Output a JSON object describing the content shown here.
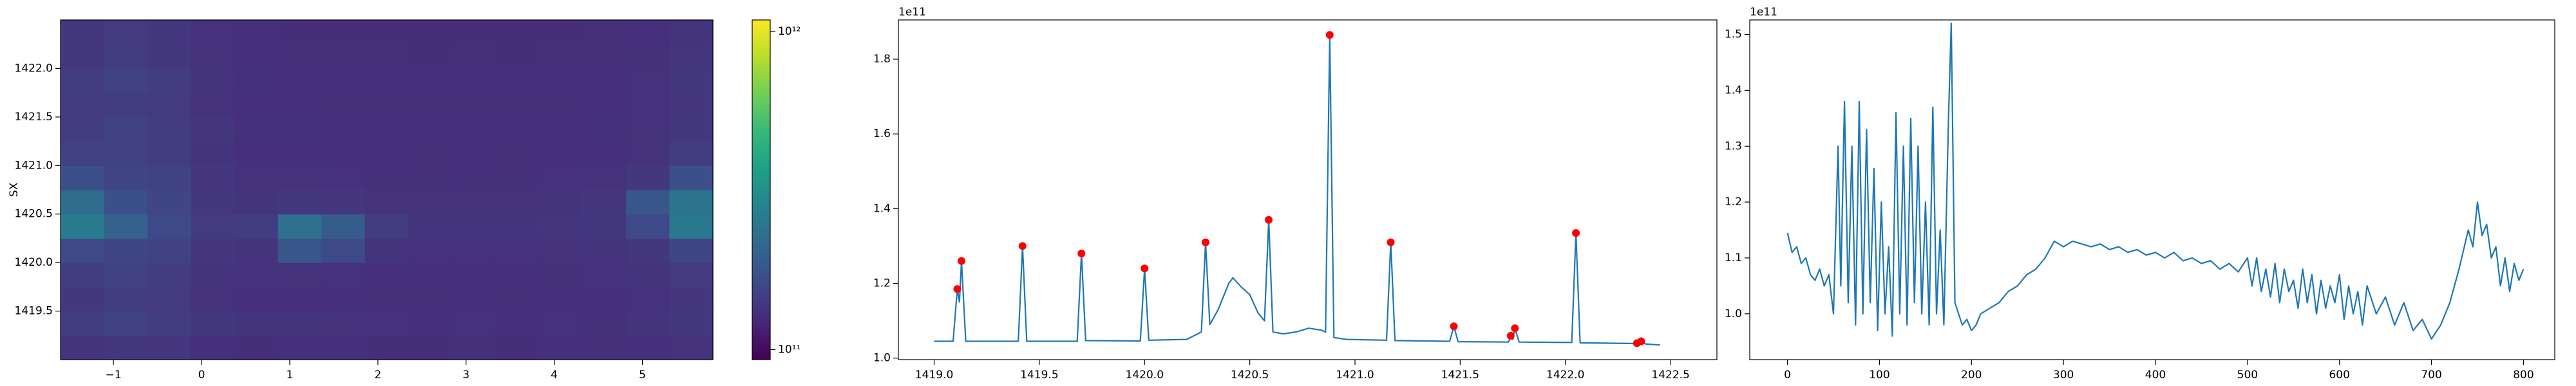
{
  "chart_data": [
    {
      "type": "heatmap",
      "ylabel": "SX",
      "colormap": "viridis",
      "xlim": [
        -1.6,
        5.8
      ],
      "ylim": [
        1419.0,
        1422.5
      ],
      "xticks": [
        {
          "value": -1,
          "label": "−1"
        },
        0,
        1,
        2,
        3,
        4,
        5
      ],
      "yticks": [
        1419.5,
        {
          "value": 1420.0,
          "label": "1420.0"
        },
        1420.5,
        {
          "value": 1421.0,
          "label": "1421.0"
        },
        1421.5,
        {
          "value": 1422.0,
          "label": "1422.0"
        }
      ],
      "z": [
        [
          135000000000.0,
          140000000000.0,
          138000000000.0,
          130000000000.0,
          128000000000.0,
          130000000000.0,
          130000000000.0,
          128000000000.0,
          128000000000.0,
          129000000000.0,
          128000000000.0,
          130000000000.0,
          129000000000.0,
          130000000000.0,
          133000000000.0
        ],
        [
          145000000000.0,
          150000000000.0,
          145000000000.0,
          140000000000.0,
          135000000000.0,
          135000000000.0,
          133000000000.0,
          132000000000.0,
          130000000000.0,
          132000000000.0,
          130000000000.0,
          132000000000.0,
          131000000000.0,
          135000000000.0,
          140000000000.0
        ],
        [
          140000000000.0,
          145000000000.0,
          142000000000.0,
          133000000000.0,
          130000000000.0,
          130000000000.0,
          130000000000.0,
          129000000000.0,
          129000000000.0,
          130000000000.0,
          129000000000.0,
          130000000000.0,
          130000000000.0,
          132000000000.0,
          138000000000.0
        ],
        [
          145000000000.0,
          150000000000.0,
          145000000000.0,
          135000000000.0,
          132000000000.0,
          133000000000.0,
          132000000000.0,
          130000000000.0,
          130000000000.0,
          130000000000.0,
          130000000000.0,
          131000000000.0,
          132000000000.0,
          135000000000.0,
          142000000000.0
        ],
        [
          160000000000.0,
          155000000000.0,
          150000000000.0,
          138000000000.0,
          135000000000.0,
          180000000000.0,
          160000000000.0,
          135000000000.0,
          132000000000.0,
          132000000000.0,
          132000000000.0,
          133000000000.0,
          135000000000.0,
          140000000000.0,
          155000000000.0
        ],
        [
          260000000000.0,
          200000000000.0,
          160000000000.0,
          142000000000.0,
          145000000000.0,
          230000000000.0,
          190000000000.0,
          145000000000.0,
          135000000000.0,
          135000000000.0,
          135000000000.0,
          136000000000.0,
          140000000000.0,
          160000000000.0,
          250000000000.0
        ],
        [
          220000000000.0,
          170000000000.0,
          155000000000.0,
          140000000000.0,
          135000000000.0,
          140000000000.0,
          138000000000.0,
          134000000000.0,
          133000000000.0,
          133000000000.0,
          133000000000.0,
          135000000000.0,
          138000000000.0,
          180000000000.0,
          240000000000.0
        ],
        [
          170000000000.0,
          155000000000.0,
          150000000000.0,
          138000000000.0,
          133000000000.0,
          133000000000.0,
          132000000000.0,
          131000000000.0,
          131000000000.0,
          131000000000.0,
          131000000000.0,
          132000000000.0,
          133000000000.0,
          140000000000.0,
          170000000000.0
        ],
        [
          150000000000.0,
          150000000000.0,
          145000000000.0,
          135000000000.0,
          130000000000.0,
          130000000000.0,
          130000000000.0,
          130000000000.0,
          129000000000.0,
          130000000000.0,
          129000000000.0,
          130000000000.0,
          130000000000.0,
          133000000000.0,
          145000000000.0
        ],
        [
          145000000000.0,
          150000000000.0,
          145000000000.0,
          136000000000.0,
          131000000000.0,
          131000000000.0,
          130000000000.0,
          130000000000.0,
          130000000000.0,
          130000000000.0,
          130000000000.0,
          130000000000.0,
          131000000000.0,
          133000000000.0,
          140000000000.0
        ],
        [
          142000000000.0,
          145000000000.0,
          142000000000.0,
          133000000000.0,
          130000000000.0,
          130000000000.0,
          129000000000.0,
          129000000000.0,
          129000000000.0,
          129000000000.0,
          129000000000.0,
          129000000000.0,
          130000000000.0,
          132000000000.0,
          138000000000.0
        ],
        [
          145000000000.0,
          150000000000.0,
          145000000000.0,
          135000000000.0,
          131000000000.0,
          130000000000.0,
          130000000000.0,
          130000000000.0,
          130000000000.0,
          130000000000.0,
          130000000000.0,
          130000000000.0,
          130000000000.0,
          133000000000.0,
          140000000000.0
        ],
        [
          140000000000.0,
          145000000000.0,
          140000000000.0,
          133000000000.0,
          130000000000.0,
          129000000000.0,
          129000000000.0,
          129000000000.0,
          128000000000.0,
          129000000000.0,
          128000000000.0,
          129000000000.0,
          129000000000.0,
          131000000000.0,
          136000000000.0
        ],
        [
          138000000000.0,
          142000000000.0,
          138000000000.0,
          132000000000.0,
          129000000000.0,
          128000000000.0,
          128000000000.0,
          128000000000.0,
          128000000000.0,
          128000000000.0,
          128000000000.0,
          128000000000.0,
          129000000000.0,
          130000000000.0,
          135000000000.0
        ]
      ],
      "colorbar": {
        "scale": "log",
        "clim": [
          93000000000.0,
          1087000000000.0
        ],
        "ticks": [
          {
            "value": 100000000000.0,
            "label": "10¹¹"
          },
          {
            "value": 1000000000000.0,
            "label": "10¹²"
          }
        ]
      }
    },
    {
      "type": "line",
      "offset_text": "1e11",
      "xlim": [
        1418.83,
        1422.72
      ],
      "ylim": [
        0.996,
        1.905
      ],
      "xticks": [
        {
          "value": 1419.0,
          "label": "1419.0"
        },
        1419.5,
        {
          "value": 1420.0,
          "label": "1420.0"
        },
        1420.5,
        {
          "value": 1421.0,
          "label": "1421.0"
        },
        1421.5,
        {
          "value": 1422.0,
          "label": "1422.0"
        },
        1422.5
      ],
      "yticks": [
        {
          "value": 1.0,
          "label": "1.0"
        },
        1.2,
        1.4,
        1.6,
        1.8
      ],
      "series": [
        {
          "color": "#1f77b4",
          "x": [
            1419.0,
            1419.09,
            1419.11,
            1419.12,
            1419.13,
            1419.15,
            1419.4,
            1419.42,
            1419.44,
            1419.68,
            1419.7,
            1419.72,
            1419.98,
            1420.0,
            1420.02,
            1420.2,
            1420.27,
            1420.29,
            1420.31,
            1420.35,
            1420.4,
            1420.42,
            1420.46,
            1420.5,
            1420.54,
            1420.57,
            1420.59,
            1420.61,
            1420.66,
            1420.72,
            1420.78,
            1420.84,
            1420.86,
            1420.88,
            1420.9,
            1420.96,
            1421.15,
            1421.17,
            1421.19,
            1421.45,
            1421.47,
            1421.49,
            1421.73,
            1421.74,
            1421.75,
            1421.76,
            1421.78,
            1422.03,
            1422.05,
            1422.07,
            1422.33,
            1422.34,
            1422.36,
            1422.38,
            1422.45
          ],
          "values": [
            1.045,
            1.045,
            1.185,
            1.15,
            1.26,
            1.045,
            1.045,
            1.3,
            1.045,
            1.045,
            1.28,
            1.047,
            1.046,
            1.24,
            1.048,
            1.05,
            1.07,
            1.31,
            1.09,
            1.13,
            1.2,
            1.215,
            1.19,
            1.17,
            1.12,
            1.1,
            1.37,
            1.07,
            1.065,
            1.07,
            1.08,
            1.075,
            1.07,
            1.865,
            1.055,
            1.05,
            1.048,
            1.31,
            1.047,
            1.045,
            1.085,
            1.044,
            1.043,
            1.06,
            1.05,
            1.08,
            1.043,
            1.042,
            1.335,
            1.041,
            1.039,
            1.04,
            1.045,
            1.038,
            1.035
          ]
        },
        {
          "color": "#ff0000",
          "marker": "dot",
          "x": [
            1419.11,
            1419.13,
            1419.42,
            1419.7,
            1420.0,
            1420.29,
            1420.59,
            1420.88,
            1421.17,
            1421.47,
            1421.74,
            1421.76,
            1422.05,
            1422.34,
            1422.36
          ],
          "values": [
            1.185,
            1.26,
            1.3,
            1.28,
            1.24,
            1.31,
            1.37,
            1.865,
            1.31,
            1.085,
            1.06,
            1.08,
            1.335,
            1.04,
            1.045
          ]
        }
      ]
    },
    {
      "type": "line",
      "offset_text": "1e11",
      "xlim": [
        -41,
        834
      ],
      "ylim": [
        0.918,
        1.526
      ],
      "xticks": [
        0,
        100,
        200,
        300,
        400,
        500,
        600,
        700,
        800
      ],
      "yticks": [
        {
          "value": 1.0,
          "label": "1.0"
        },
        1.1,
        1.2,
        1.3,
        1.4,
        1.5
      ],
      "series": [
        {
          "color": "#1f77b4",
          "x": [
            0,
            5,
            10,
            15,
            20,
            25,
            30,
            35,
            40,
            45,
            50,
            55,
            58,
            62,
            66,
            70,
            74,
            78,
            82,
            86,
            90,
            94,
            98,
            102,
            106,
            110,
            114,
            118,
            122,
            126,
            130,
            134,
            138,
            142,
            146,
            150,
            154,
            158,
            162,
            166,
            170,
            175,
            178,
            182,
            186,
            190,
            195,
            200,
            205,
            210,
            220,
            230,
            240,
            250,
            260,
            270,
            280,
            290,
            300,
            310,
            320,
            330,
            340,
            350,
            360,
            370,
            380,
            390,
            400,
            410,
            420,
            430,
            440,
            450,
            460,
            470,
            480,
            490,
            500,
            505,
            510,
            515,
            520,
            525,
            530,
            535,
            540,
            545,
            550,
            555,
            560,
            565,
            570,
            575,
            580,
            585,
            590,
            595,
            600,
            605,
            610,
            615,
            620,
            625,
            630,
            640,
            650,
            660,
            670,
            680,
            690,
            700,
            710,
            720,
            730,
            740,
            745,
            750,
            755,
            760,
            765,
            770,
            775,
            780,
            785,
            790,
            795,
            800
          ],
          "values": [
            1.145,
            1.11,
            1.12,
            1.09,
            1.1,
            1.07,
            1.06,
            1.08,
            1.05,
            1.07,
            1.0,
            1.3,
            1.05,
            1.38,
            1.02,
            1.3,
            0.98,
            1.38,
            1.0,
            1.33,
            1.02,
            1.26,
            0.97,
            1.2,
            1.0,
            1.12,
            0.96,
            1.36,
            1.0,
            1.3,
            0.98,
            1.35,
            1.02,
            1.3,
            1.0,
            1.2,
            0.98,
            1.37,
            1.0,
            1.15,
            0.98,
            1.35,
            1.52,
            1.02,
            1.0,
            0.98,
            0.99,
            0.97,
            0.98,
            1.0,
            1.01,
            1.02,
            1.04,
            1.05,
            1.07,
            1.08,
            1.1,
            1.13,
            1.12,
            1.13,
            1.125,
            1.12,
            1.125,
            1.115,
            1.12,
            1.11,
            1.115,
            1.105,
            1.11,
            1.1,
            1.11,
            1.095,
            1.1,
            1.09,
            1.095,
            1.08,
            1.09,
            1.075,
            1.1,
            1.05,
            1.1,
            1.04,
            1.08,
            1.03,
            1.09,
            1.02,
            1.08,
            1.04,
            1.06,
            1.01,
            1.08,
            1.02,
            1.07,
            1.0,
            1.06,
            1.01,
            1.05,
            1.02,
            1.07,
            0.99,
            1.05,
            1.0,
            1.04,
            0.98,
            1.05,
            1.0,
            1.03,
            0.98,
            1.02,
            0.97,
            0.99,
            0.955,
            0.98,
            1.02,
            1.08,
            1.15,
            1.12,
            1.2,
            1.14,
            1.16,
            1.1,
            1.12,
            1.05,
            1.1,
            1.04,
            1.09,
            1.06,
            1.08
          ]
        }
      ]
    }
  ]
}
